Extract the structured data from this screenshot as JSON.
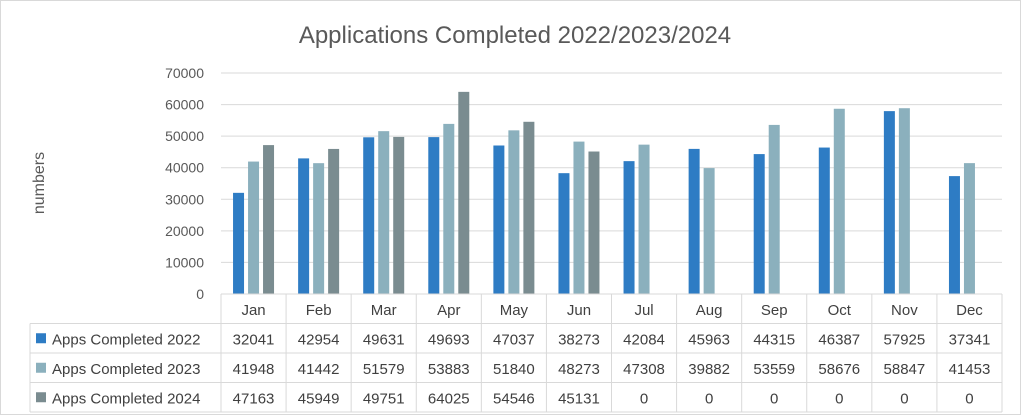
{
  "chart_data": {
    "type": "bar",
    "title": "Applications Completed 2022/2023/2024",
    "ylabel": "numbers",
    "xlabel": "",
    "ylim": [
      0,
      70000
    ],
    "yticks": [
      0,
      10000,
      20000,
      30000,
      40000,
      50000,
      60000,
      70000
    ],
    "grid": true,
    "legend": "data-table",
    "categories": [
      "Jan",
      "Feb",
      "Mar",
      "Apr",
      "May",
      "Jun",
      "Jul",
      "Aug",
      "Sep",
      "Oct",
      "Nov",
      "Dec"
    ],
    "series": [
      {
        "name": "Apps Completed 2022",
        "color": "#2E7CC4",
        "values": [
          32041,
          42954,
          49631,
          49693,
          47037,
          38273,
          42084,
          45963,
          44315,
          46387,
          57925,
          37341
        ]
      },
      {
        "name": "Apps Completed 2023",
        "color": "#8BB0BD",
        "values": [
          41948,
          41442,
          51579,
          53883,
          51840,
          48273,
          47308,
          39882,
          53559,
          58676,
          58847,
          41453
        ]
      },
      {
        "name": "Apps Completed 2024",
        "color": "#7A8C90",
        "values": [
          47163,
          45949,
          49751,
          64025,
          54546,
          45131,
          0,
          0,
          0,
          0,
          0,
          0
        ]
      }
    ]
  }
}
